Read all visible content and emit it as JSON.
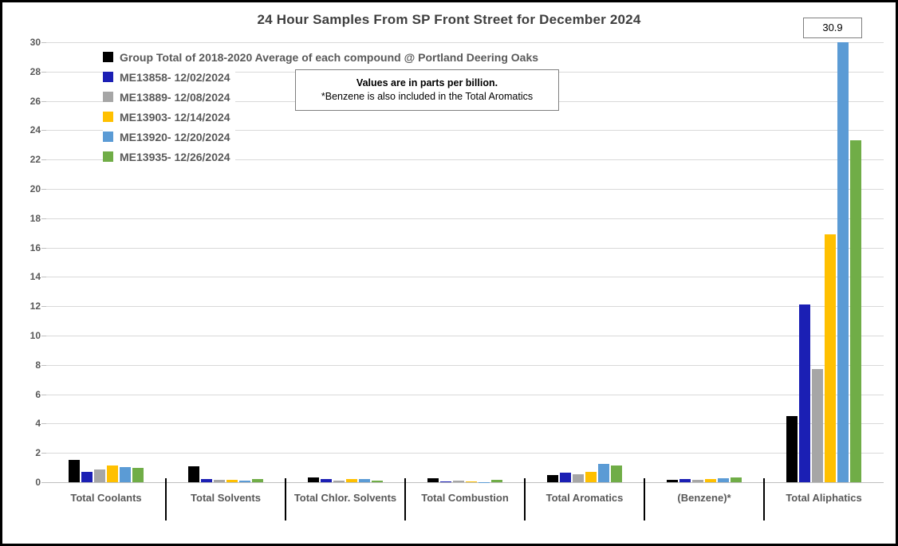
{
  "annotation": {
    "line1": "Values are in parts per billion.",
    "line2": "*Benzene is also included in the Total Aromatics"
  },
  "callout": {
    "text": "30.9"
  },
  "chart_data": {
    "type": "bar",
    "title": "24 Hour Samples From SP Front Street for December 2024",
    "units": "parts per billion",
    "categories": [
      "Total Coolants",
      "Total Solvents",
      "Total Chlor. Solvents",
      "Total Combustion",
      "Total Aromatics",
      "(Benzene)*",
      "Total Aliphatics"
    ],
    "series": [
      {
        "name": "Group Total of 2018-2020 Average of each compound @ Portland Deering Oaks",
        "color": "#000000",
        "values": [
          1.5,
          1.1,
          0.3,
          0.25,
          0.5,
          0.15,
          4.5
        ]
      },
      {
        "name": "ME13858- 12/02/2024",
        "color": "#1b1fb4",
        "values": [
          0.7,
          0.2,
          0.2,
          0.08,
          0.65,
          0.2,
          12.1
        ]
      },
      {
        "name": "ME13889- 12/08/2024",
        "color": "#a6a6a6",
        "values": [
          0.85,
          0.15,
          0.1,
          0.1,
          0.55,
          0.15,
          7.7
        ]
      },
      {
        "name": "ME13903- 12/14/2024",
        "color": "#ffc000",
        "values": [
          1.15,
          0.15,
          0.2,
          0.08,
          0.7,
          0.2,
          16.9
        ]
      },
      {
        "name": "ME13920- 12/20/2024",
        "color": "#5b9bd5",
        "values": [
          1.05,
          0.12,
          0.2,
          0.02,
          1.25,
          0.25,
          30.9
        ]
      },
      {
        "name": "ME13935- 12/26/2024",
        "color": "#70ad47",
        "values": [
          1.0,
          0.2,
          0.1,
          0.15,
          1.15,
          0.3,
          23.3
        ]
      }
    ],
    "ylim": [
      0,
      30
    ],
    "ytick_step": 2,
    "grid": true,
    "legend_position": "top-left",
    "annotated_value": {
      "series": "ME13920- 12/20/2024",
      "category": "Total Aliphatics",
      "value": 30.9
    }
  }
}
